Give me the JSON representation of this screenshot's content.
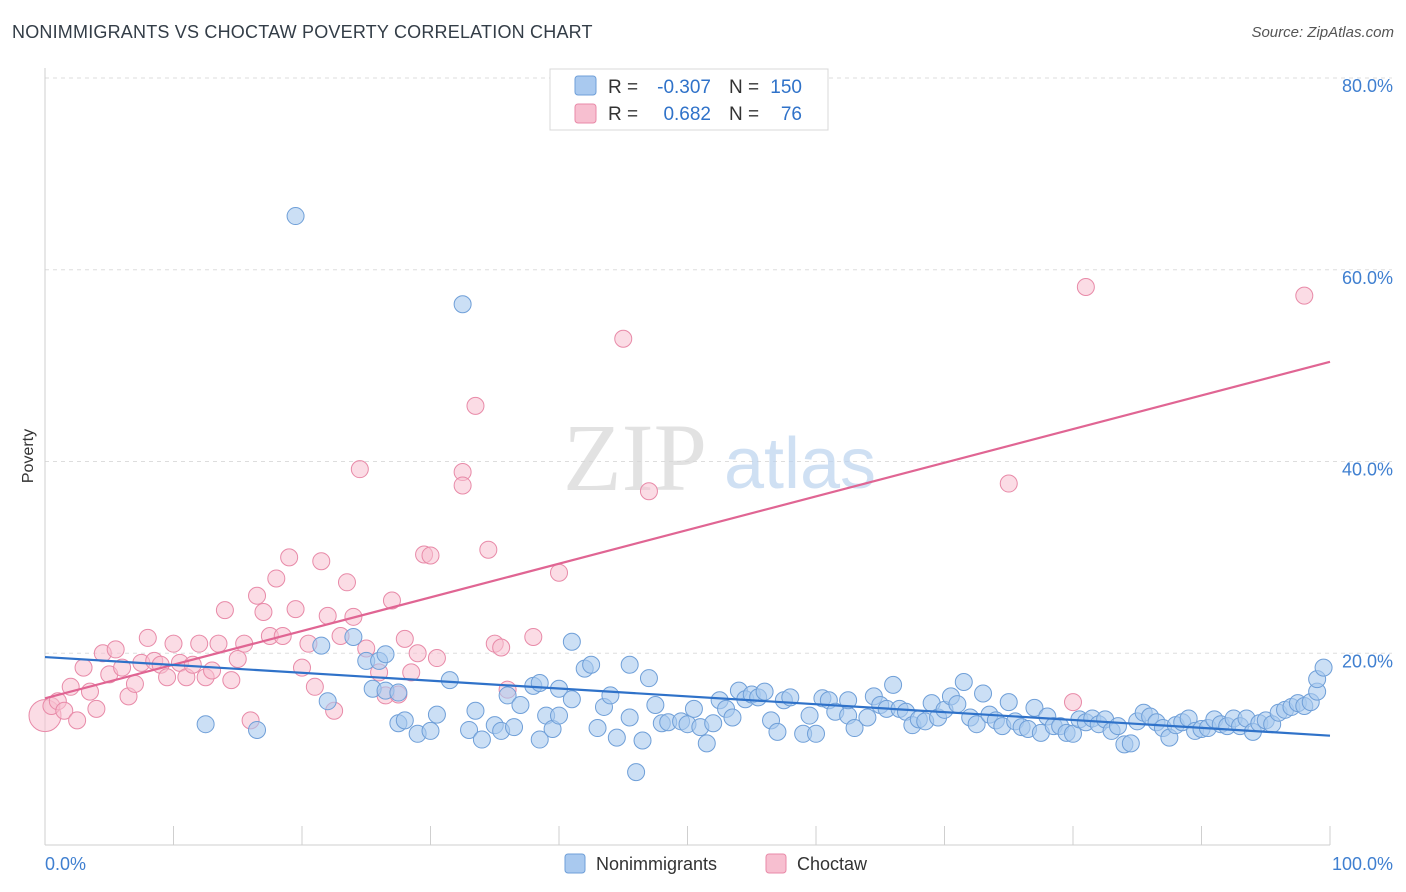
{
  "title": "NONIMMIGRANTS VS CHOCTAW POVERTY CORRELATION CHART",
  "source": "Source: ZipAtlas.com",
  "watermark": {
    "zip": "ZIP",
    "atlas": "atlas"
  },
  "colors": {
    "blue_fill": "#a9c9ef",
    "blue_stroke": "#6f9fd8",
    "blue_line": "#2f72c9",
    "pink_fill": "#f7bfd0",
    "pink_stroke": "#e88aa8",
    "pink_line": "#e06593",
    "tick_label": "#3f7fd0",
    "grid": "#dddddd"
  },
  "legend_top": {
    "rows": [
      {
        "r_label": "R =",
        "r_value": "-0.307",
        "n_label": "N =",
        "n_value": "150"
      },
      {
        "r_label": "R =",
        "r_value": "0.682",
        "n_label": "N =",
        "n_value": "76"
      }
    ]
  },
  "legend_bottom": [
    "Nonimmigrants",
    "Choctaw"
  ],
  "chart_data": {
    "type": "scatter",
    "title": "NONIMMIGRANTS VS CHOCTAW POVERTY CORRELATION CHART",
    "xlabel": "",
    "ylabel": "Poverty",
    "xlim": [
      0,
      100
    ],
    "ylim": [
      0,
      80
    ],
    "x_tick_labels": [
      "0.0%",
      "100.0%"
    ],
    "y_ticks": [
      20,
      40,
      60,
      80
    ],
    "y_tick_labels": [
      "20.0%",
      "40.0%",
      "60.0%",
      "80.0%"
    ],
    "grid": true,
    "legend_position": "bottom",
    "series": [
      {
        "name": "Nonimmigrants",
        "R": -0.307,
        "N": 150,
        "trend": {
          "x": [
            0,
            100
          ],
          "y": [
            19.6,
            11.4
          ]
        },
        "points": [
          [
            19.5,
            65.6
          ],
          [
            32.5,
            56.4
          ],
          [
            12.5,
            12.6
          ],
          [
            21.5,
            20.8
          ],
          [
            24.0,
            21.7
          ],
          [
            25.0,
            19.2
          ],
          [
            26.0,
            19.2
          ],
          [
            26.5,
            19.9
          ],
          [
            25.5,
            16.3
          ],
          [
            26.5,
            16.1
          ],
          [
            27.5,
            15.9
          ],
          [
            27.5,
            12.7
          ],
          [
            29.0,
            11.6
          ],
          [
            30.0,
            11.9
          ],
          [
            30.5,
            13.6
          ],
          [
            31.5,
            17.2
          ],
          [
            33.0,
            12.0
          ],
          [
            34.0,
            11.0
          ],
          [
            35.0,
            12.5
          ],
          [
            35.5,
            11.9
          ],
          [
            36.0,
            15.6
          ],
          [
            36.5,
            12.3
          ],
          [
            37.0,
            14.6
          ],
          [
            38.0,
            16.6
          ],
          [
            38.5,
            16.9
          ],
          [
            38.5,
            11.0
          ],
          [
            39.0,
            13.5
          ],
          [
            39.5,
            12.1
          ],
          [
            40.0,
            16.3
          ],
          [
            41.0,
            21.2
          ],
          [
            41.0,
            15.2
          ],
          [
            42.0,
            18.4
          ],
          [
            42.5,
            18.8
          ],
          [
            43.0,
            12.2
          ],
          [
            43.5,
            14.4
          ],
          [
            44.0,
            15.6
          ],
          [
            44.5,
            11.2
          ],
          [
            45.5,
            18.8
          ],
          [
            45.5,
            13.3
          ],
          [
            46.0,
            7.6
          ],
          [
            46.5,
            10.9
          ],
          [
            47.0,
            17.4
          ],
          [
            47.5,
            14.6
          ],
          [
            48.0,
            12.7
          ],
          [
            48.5,
            12.8
          ],
          [
            49.5,
            12.9
          ],
          [
            50.0,
            12.6
          ],
          [
            50.5,
            14.2
          ],
          [
            51.0,
            12.3
          ],
          [
            51.5,
            10.6
          ],
          [
            52.0,
            12.7
          ],
          [
            52.5,
            15.1
          ],
          [
            53.0,
            14.2
          ],
          [
            53.5,
            13.3
          ],
          [
            54.0,
            16.1
          ],
          [
            54.5,
            15.2
          ],
          [
            55.0,
            15.7
          ],
          [
            55.5,
            15.4
          ],
          [
            56.0,
            16.0
          ],
          [
            56.5,
            13.0
          ],
          [
            57.0,
            11.8
          ],
          [
            57.5,
            15.1
          ],
          [
            58.0,
            15.4
          ],
          [
            59.0,
            11.6
          ],
          [
            59.5,
            13.5
          ],
          [
            60.0,
            11.6
          ],
          [
            60.5,
            15.3
          ],
          [
            61.0,
            15.1
          ],
          [
            61.5,
            13.9
          ],
          [
            62.5,
            13.5
          ],
          [
            62.5,
            15.1
          ],
          [
            63.0,
            12.2
          ],
          [
            64.0,
            13.3
          ],
          [
            64.5,
            15.5
          ],
          [
            65.0,
            14.6
          ],
          [
            65.5,
            14.2
          ],
          [
            66.0,
            16.7
          ],
          [
            66.5,
            14.2
          ],
          [
            67.0,
            13.9
          ],
          [
            67.5,
            12.5
          ],
          [
            68.0,
            13.1
          ],
          [
            68.5,
            12.9
          ],
          [
            69.0,
            14.8
          ],
          [
            69.5,
            13.3
          ],
          [
            70.0,
            14.1
          ],
          [
            70.5,
            15.5
          ],
          [
            71.0,
            14.7
          ],
          [
            71.5,
            17.0
          ],
          [
            72.0,
            13.3
          ],
          [
            72.5,
            12.6
          ],
          [
            73.0,
            15.8
          ],
          [
            73.5,
            13.6
          ],
          [
            74.0,
            13.0
          ],
          [
            74.5,
            12.4
          ],
          [
            75.0,
            14.9
          ],
          [
            75.5,
            12.9
          ],
          [
            76.0,
            12.3
          ],
          [
            76.5,
            12.1
          ],
          [
            77.0,
            14.3
          ],
          [
            77.5,
            11.7
          ],
          [
            78.0,
            13.4
          ],
          [
            78.5,
            12.4
          ],
          [
            79.0,
            12.4
          ],
          [
            79.5,
            11.7
          ],
          [
            80.0,
            11.6
          ],
          [
            80.5,
            13.1
          ],
          [
            81.0,
            12.8
          ],
          [
            81.5,
            13.2
          ],
          [
            82.0,
            12.6
          ],
          [
            82.5,
            13.1
          ],
          [
            83.0,
            11.9
          ],
          [
            83.5,
            12.4
          ],
          [
            84.0,
            10.5
          ],
          [
            84.5,
            10.6
          ],
          [
            85.0,
            12.9
          ],
          [
            85.5,
            13.8
          ],
          [
            86.0,
            13.4
          ],
          [
            86.5,
            12.8
          ],
          [
            87.0,
            12.2
          ],
          [
            87.5,
            11.2
          ],
          [
            88.0,
            12.5
          ],
          [
            88.5,
            12.8
          ],
          [
            89.0,
            13.2
          ],
          [
            89.5,
            11.9
          ],
          [
            90.0,
            12.1
          ],
          [
            90.5,
            12.2
          ],
          [
            91.0,
            13.1
          ],
          [
            91.5,
            12.6
          ],
          [
            92.0,
            12.4
          ],
          [
            92.5,
            13.2
          ],
          [
            93.0,
            12.4
          ],
          [
            93.5,
            13.2
          ],
          [
            94.0,
            11.8
          ],
          [
            94.5,
            12.7
          ],
          [
            95.0,
            13.0
          ],
          [
            95.5,
            12.6
          ],
          [
            96.0,
            13.8
          ],
          [
            96.5,
            14.1
          ],
          [
            97.0,
            14.4
          ],
          [
            97.5,
            14.8
          ],
          [
            98.0,
            14.5
          ],
          [
            98.5,
            14.9
          ],
          [
            99.0,
            16.0
          ],
          [
            99.0,
            17.3
          ],
          [
            99.5,
            18.5
          ],
          [
            16.5,
            12.0
          ],
          [
            22.0,
            15.0
          ],
          [
            28.0,
            13.0
          ],
          [
            33.5,
            14.0
          ],
          [
            40.0,
            13.5
          ]
        ]
      },
      {
        "name": "Choctaw",
        "R": 0.682,
        "N": 76,
        "trend": {
          "x": [
            0,
            100
          ],
          "y": [
            15.3,
            50.4
          ]
        },
        "points": [
          [
            0.0,
            13.5
          ],
          [
            0.5,
            14.5
          ],
          [
            1.0,
            15.0
          ],
          [
            1.5,
            14.0
          ],
          [
            2.0,
            16.5
          ],
          [
            2.5,
            13.0
          ],
          [
            3.0,
            18.5
          ],
          [
            3.5,
            16.0
          ],
          [
            4.0,
            14.2
          ],
          [
            4.5,
            20.0
          ],
          [
            5.0,
            17.8
          ],
          [
            5.5,
            20.4
          ],
          [
            6.0,
            18.5
          ],
          [
            6.5,
            15.5
          ],
          [
            7.0,
            16.8
          ],
          [
            7.5,
            19.0
          ],
          [
            8.0,
            21.6
          ],
          [
            8.5,
            19.2
          ],
          [
            9.0,
            18.8
          ],
          [
            9.5,
            17.5
          ],
          [
            10.0,
            21.0
          ],
          [
            10.5,
            19.0
          ],
          [
            11.0,
            17.5
          ],
          [
            11.5,
            18.8
          ],
          [
            12.0,
            21.0
          ],
          [
            12.5,
            17.5
          ],
          [
            13.0,
            18.2
          ],
          [
            13.5,
            21.0
          ],
          [
            14.0,
            24.5
          ],
          [
            14.5,
            17.2
          ],
          [
            15.0,
            19.4
          ],
          [
            15.5,
            21.0
          ],
          [
            16.0,
            13.0
          ],
          [
            16.5,
            26.0
          ],
          [
            17.0,
            24.3
          ],
          [
            17.5,
            21.8
          ],
          [
            18.0,
            27.8
          ],
          [
            18.5,
            21.8
          ],
          [
            19.0,
            30.0
          ],
          [
            19.5,
            24.6
          ],
          [
            20.0,
            18.5
          ],
          [
            20.5,
            21.0
          ],
          [
            21.0,
            16.5
          ],
          [
            21.5,
            29.6
          ],
          [
            22.0,
            23.9
          ],
          [
            22.5,
            14.0
          ],
          [
            23.0,
            21.8
          ],
          [
            23.5,
            27.4
          ],
          [
            24.0,
            23.8
          ],
          [
            24.5,
            39.2
          ],
          [
            25.0,
            20.5
          ],
          [
            26.0,
            18.0
          ],
          [
            26.5,
            15.6
          ],
          [
            27.0,
            25.5
          ],
          [
            27.5,
            15.7
          ],
          [
            28.0,
            21.5
          ],
          [
            29.0,
            20.0
          ],
          [
            29.5,
            30.3
          ],
          [
            30.0,
            30.2
          ],
          [
            30.5,
            19.5
          ],
          [
            32.5,
            38.9
          ],
          [
            32.5,
            37.5
          ],
          [
            33.5,
            45.8
          ],
          [
            34.5,
            30.8
          ],
          [
            35.0,
            21.0
          ],
          [
            35.5,
            20.6
          ],
          [
            36.0,
            16.2
          ],
          [
            38.0,
            21.7
          ],
          [
            40.0,
            28.4
          ],
          [
            45.0,
            52.8
          ],
          [
            47.0,
            36.9
          ],
          [
            75.0,
            37.7
          ],
          [
            80.0,
            14.9
          ],
          [
            81.0,
            58.2
          ],
          [
            98.0,
            57.3
          ],
          [
            28.5,
            18.0
          ]
        ]
      }
    ]
  }
}
